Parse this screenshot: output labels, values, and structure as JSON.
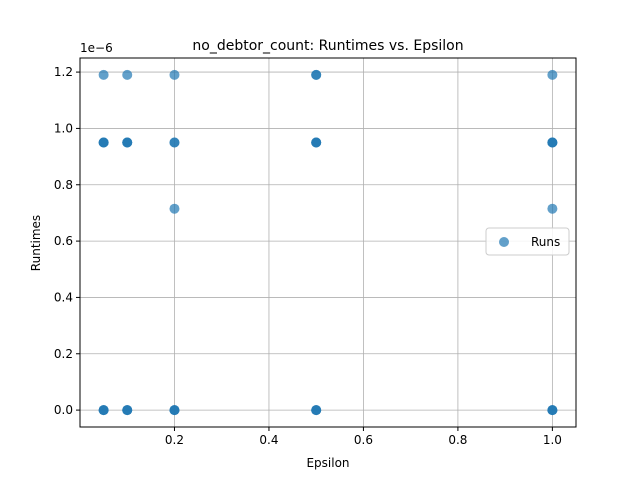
{
  "chart_data": {
    "type": "scatter",
    "title": "no_debtor_count: Runtimes vs. Epsilon",
    "xlabel": "Epsilon",
    "ylabel": "Runtimes",
    "y_offset_label": "1e−6",
    "xlim": [
      0.0,
      1.05
    ],
    "ylim": [
      -0.06,
      1.25
    ],
    "x_ticks": [
      0.2,
      0.4,
      0.6,
      0.8,
      1.0
    ],
    "x_tick_labels": [
      "0.2",
      "0.4",
      "0.6",
      "0.8",
      "1.0"
    ],
    "y_ticks": [
      0.0,
      0.2,
      0.4,
      0.6,
      0.8,
      1.0,
      1.2
    ],
    "y_tick_labels": [
      "0.0",
      "0.2",
      "0.4",
      "0.6",
      "0.8",
      "1.0",
      "1.2"
    ],
    "grid": true,
    "legend": {
      "position": "right",
      "entries": [
        "Runs"
      ]
    },
    "series": [
      {
        "name": "Runs",
        "color": "#1f77b4",
        "alpha": 0.7,
        "points": [
          {
            "x": 0.05,
            "y": 1.19
          },
          {
            "x": 0.05,
            "y": 0.95
          },
          {
            "x": 0.05,
            "y": 0.95
          },
          {
            "x": 0.05,
            "y": 0.95
          },
          {
            "x": 0.05,
            "y": 0.0
          },
          {
            "x": 0.05,
            "y": 0.0
          },
          {
            "x": 0.05,
            "y": 0.0
          },
          {
            "x": 0.1,
            "y": 1.19
          },
          {
            "x": 0.1,
            "y": 0.95
          },
          {
            "x": 0.1,
            "y": 0.95
          },
          {
            "x": 0.1,
            "y": 0.95
          },
          {
            "x": 0.1,
            "y": 0.0
          },
          {
            "x": 0.1,
            "y": 0.0
          },
          {
            "x": 0.1,
            "y": 0.0
          },
          {
            "x": 0.2,
            "y": 1.19
          },
          {
            "x": 0.2,
            "y": 0.95
          },
          {
            "x": 0.2,
            "y": 0.95
          },
          {
            "x": 0.2,
            "y": 0.715
          },
          {
            "x": 0.2,
            "y": 0.0
          },
          {
            "x": 0.2,
            "y": 0.0
          },
          {
            "x": 0.2,
            "y": 0.0
          },
          {
            "x": 0.5,
            "y": 1.19
          },
          {
            "x": 0.5,
            "y": 1.19
          },
          {
            "x": 0.5,
            "y": 0.95
          },
          {
            "x": 0.5,
            "y": 0.95
          },
          {
            "x": 0.5,
            "y": 0.95
          },
          {
            "x": 0.5,
            "y": 0.0
          },
          {
            "x": 0.5,
            "y": 0.0
          },
          {
            "x": 0.5,
            "y": 0.0
          },
          {
            "x": 1.0,
            "y": 1.19
          },
          {
            "x": 1.0,
            "y": 0.95
          },
          {
            "x": 1.0,
            "y": 0.95
          },
          {
            "x": 1.0,
            "y": 0.95
          },
          {
            "x": 1.0,
            "y": 0.715
          },
          {
            "x": 1.0,
            "y": 0.0
          },
          {
            "x": 1.0,
            "y": 0.0
          },
          {
            "x": 1.0,
            "y": 0.0
          }
        ]
      }
    ]
  }
}
